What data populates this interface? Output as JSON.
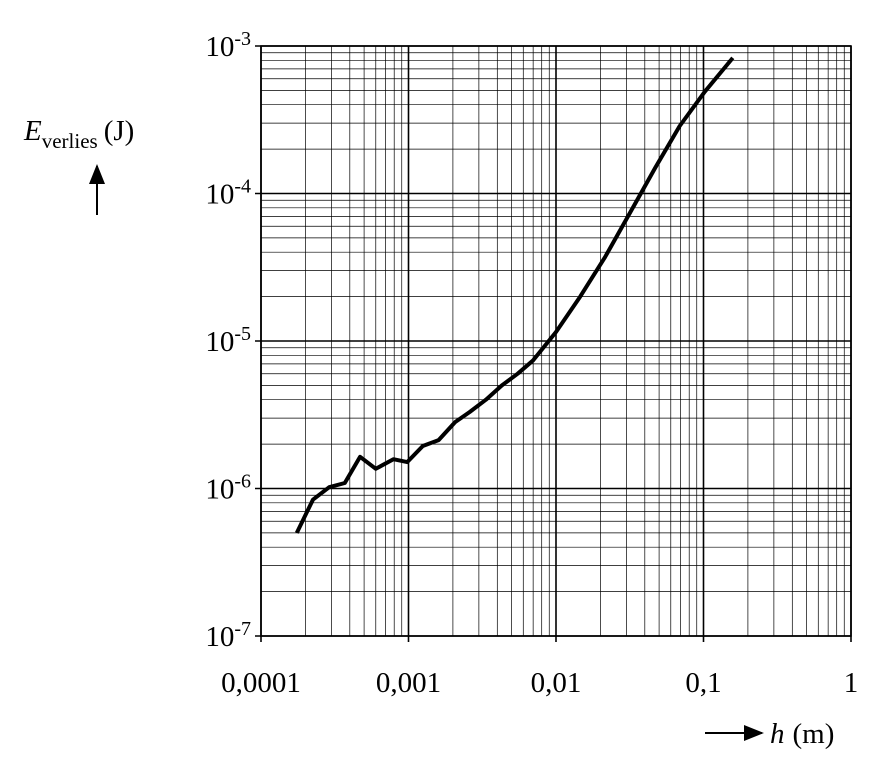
{
  "chart_data": {
    "type": "line",
    "xscale": "log",
    "yscale": "log",
    "grid": true,
    "minor_grid": true,
    "xlabel": {
      "symbol": "h",
      "unit": "(m)"
    },
    "ylabel": {
      "symbol": "E",
      "subscript": "verlies",
      "unit": "(J)"
    },
    "xlim": [
      0.0001,
      1
    ],
    "ylim": [
      1e-07,
      0.001
    ],
    "xticks": [
      {
        "value": 0.0001,
        "label": "0,0001"
      },
      {
        "value": 0.001,
        "label": "0,001"
      },
      {
        "value": 0.01,
        "label": "0,01"
      },
      {
        "value": 0.1,
        "label": "0,1"
      },
      1
    ],
    "yticks": [
      {
        "value": 1e-07,
        "label": "10-7"
      },
      {
        "value": 1e-06,
        "label": "10-6"
      },
      {
        "value": 1e-05,
        "label": "10-5"
      },
      {
        "value": 0.0001,
        "label": "10-4"
      },
      {
        "value": 0.001,
        "label": "10-3"
      }
    ],
    "color": "#000000",
    "x": [
      0.000175,
      0.000225,
      0.00029,
      0.00037,
      0.00047,
      0.0006,
      0.00079,
      0.00098,
      0.00125,
      0.0016,
      0.00207,
      0.0026,
      0.00335,
      0.0043,
      0.0055,
      0.007,
      0.01,
      0.0146,
      0.0215,
      0.032,
      0.047,
      0.069,
      0.102,
      0.158
    ],
    "values": [
      5e-07,
      8.4e-07,
      1.02e-06,
      1.09e-06,
      1.64e-06,
      1.36e-06,
      1.58e-06,
      1.51e-06,
      1.94e-06,
      2.13e-06,
      2.82e-06,
      3.3e-06,
      4e-06,
      5e-06,
      6e-06,
      7.4e-06,
      1.15e-05,
      2e-05,
      3.7e-05,
      7.5e-05,
      0.000149,
      0.000287,
      0.00049,
      0.00083
    ]
  }
}
